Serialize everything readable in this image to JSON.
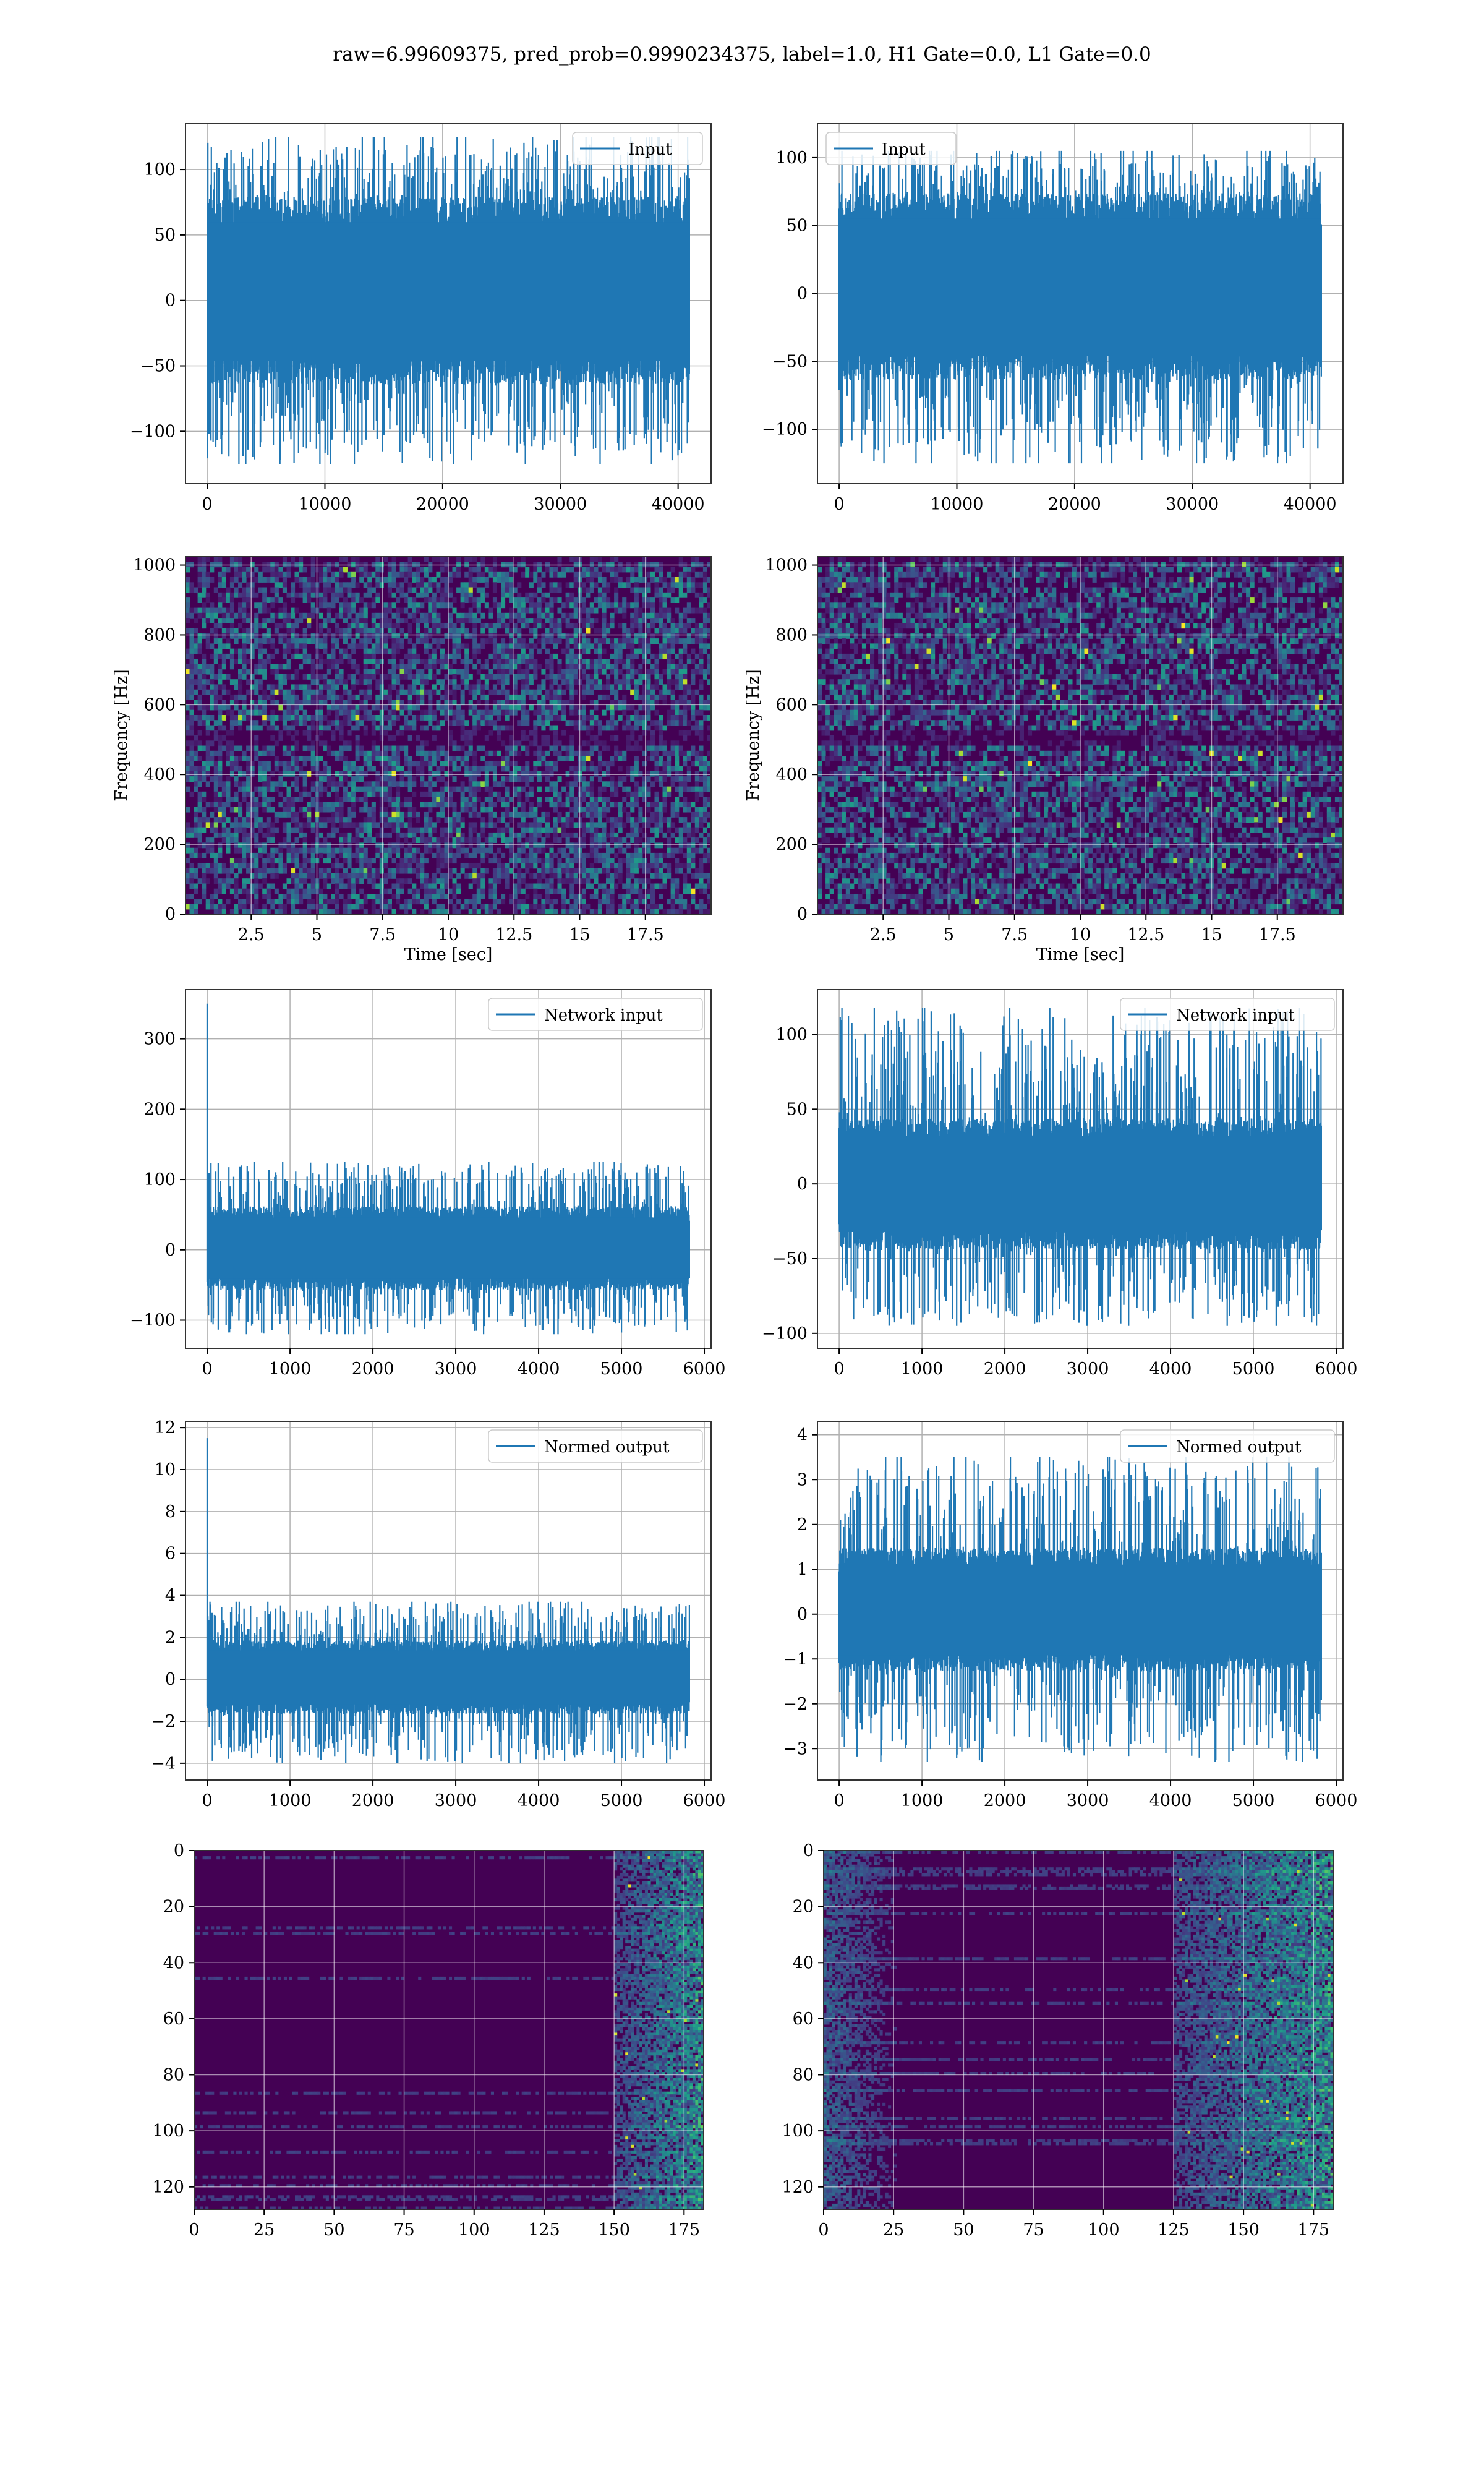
{
  "title": "raw=6.99609375, pred_prob=0.9990234375, label=1.0, H1 Gate=0.0, L1 Gate=0.0",
  "colors": {
    "line": "#1f77b4",
    "grid": "#b0b0b0",
    "viridis_low": "#440154",
    "viridis_mid": "#21918c",
    "viridis_high": "#fde725"
  },
  "chart_data": [
    {
      "type": "line",
      "panel": "row1-left",
      "legend": "Input",
      "legend_loc": "top-right",
      "grid": true,
      "x_range": [
        0,
        40960
      ],
      "ylim": [
        -140,
        135
      ],
      "xticks": [
        0,
        10000,
        20000,
        30000,
        40000
      ],
      "yticks": [
        -100,
        -50,
        0,
        50,
        100
      ],
      "envelope": {
        "core_lower": -50,
        "core_upper": 65,
        "min": -125,
        "max": 125
      }
    },
    {
      "type": "line",
      "panel": "row1-right",
      "legend": "Input",
      "legend_loc": "top-left",
      "grid": true,
      "x_range": [
        0,
        40960
      ],
      "ylim": [
        -140,
        125
      ],
      "xticks": [
        0,
        10000,
        20000,
        30000,
        40000
      ],
      "yticks": [
        -100,
        -50,
        0,
        50,
        100
      ],
      "envelope": {
        "core_lower": -50,
        "core_upper": 60,
        "min": -125,
        "max": 105
      }
    },
    {
      "type": "heatmap",
      "panel": "row2-left",
      "grid": true,
      "xlabel": "Time [sec]",
      "ylabel": "Frequency [Hz]",
      "xlim": [
        0,
        20
      ],
      "ylim": [
        0,
        1024
      ],
      "xticks": [
        2.5,
        5.0,
        7.5,
        10.0,
        12.5,
        15.0,
        17.5
      ],
      "yticks": [
        0,
        200,
        400,
        600,
        800,
        1000
      ],
      "colormap": "viridis",
      "pattern": "noise",
      "dark_band_hz": 505
    },
    {
      "type": "heatmap",
      "panel": "row2-right",
      "grid": true,
      "xlabel": "Time [sec]",
      "ylabel": "Frequency [Hz]",
      "xlim": [
        0,
        20
      ],
      "ylim": [
        0,
        1024
      ],
      "xticks": [
        2.5,
        5.0,
        7.5,
        10.0,
        12.5,
        15.0,
        17.5
      ],
      "yticks": [
        0,
        200,
        400,
        600,
        800,
        1000
      ],
      "colormap": "viridis",
      "pattern": "noise",
      "dark_band_hz": 505
    },
    {
      "type": "line",
      "panel": "row3-left",
      "legend": "Network input",
      "legend_loc": "top-right",
      "grid": true,
      "x_range": [
        0,
        5820
      ],
      "ylim": [
        -140,
        370
      ],
      "xticks": [
        0,
        1000,
        2000,
        3000,
        4000,
        5000,
        6000
      ],
      "yticks": [
        -100,
        0,
        100,
        200,
        300
      ],
      "envelope": {
        "core_lower": -45,
        "core_upper": 50,
        "min": -120,
        "max": 125
      },
      "spike": {
        "x": 0,
        "y": 350
      }
    },
    {
      "type": "line",
      "panel": "row3-right",
      "legend": "Network input",
      "legend_loc": "top-right",
      "grid": true,
      "x_range": [
        0,
        5820
      ],
      "ylim": [
        -110,
        130
      ],
      "xticks": [
        0,
        1000,
        2000,
        3000,
        4000,
        5000,
        6000
      ],
      "yticks": [
        -100,
        -50,
        0,
        50,
        100
      ],
      "envelope": {
        "core_lower": -35,
        "core_upper": 35,
        "min": -95,
        "max": 118
      }
    },
    {
      "type": "line",
      "panel": "row4-left",
      "legend": "Normed output",
      "legend_loc": "top-right",
      "grid": true,
      "x_range": [
        0,
        5820
      ],
      "ylim": [
        -4.8,
        12.3
      ],
      "xticks": [
        0,
        1000,
        2000,
        3000,
        4000,
        5000,
        6000
      ],
      "yticks": [
        -4,
        -2,
        0,
        2,
        4,
        6,
        8,
        10,
        12
      ],
      "envelope": {
        "core_lower": -1.3,
        "core_upper": 1.5,
        "min": -4.0,
        "max": 3.7
      },
      "spike": {
        "x": 0,
        "y": 11.5
      }
    },
    {
      "type": "line",
      "panel": "row4-right",
      "legend": "Normed output",
      "legend_loc": "top-right",
      "grid": true,
      "x_range": [
        0,
        5820
      ],
      "ylim": [
        -3.7,
        4.3
      ],
      "xticks": [
        0,
        1000,
        2000,
        3000,
        4000,
        5000,
        6000
      ],
      "yticks": [
        -3,
        -2,
        -1,
        0,
        1,
        2,
        3,
        4
      ],
      "envelope": {
        "core_lower": -1.0,
        "core_upper": 1.2,
        "min": -3.3,
        "max": 3.5
      }
    },
    {
      "type": "heatmap",
      "panel": "row5-left",
      "grid": true,
      "xlim": [
        0,
        182
      ],
      "ylim": [
        0,
        128
      ],
      "y_inverted": true,
      "xticks": [
        0,
        25,
        50,
        75,
        100,
        125,
        150,
        175
      ],
      "yticks": [
        0,
        20,
        40,
        60,
        80,
        100,
        120
      ],
      "colormap": "viridis",
      "pattern": "bright-right",
      "bright_from_x": 150
    },
    {
      "type": "heatmap",
      "panel": "row5-right",
      "grid": true,
      "xlim": [
        0,
        182
      ],
      "ylim": [
        0,
        128
      ],
      "y_inverted": true,
      "xticks": [
        0,
        25,
        50,
        75,
        100,
        125,
        150,
        175
      ],
      "yticks": [
        0,
        20,
        40,
        60,
        80,
        100,
        120
      ],
      "colormap": "viridis",
      "pattern": "bright-both",
      "bright_from_x": 125
    }
  ]
}
